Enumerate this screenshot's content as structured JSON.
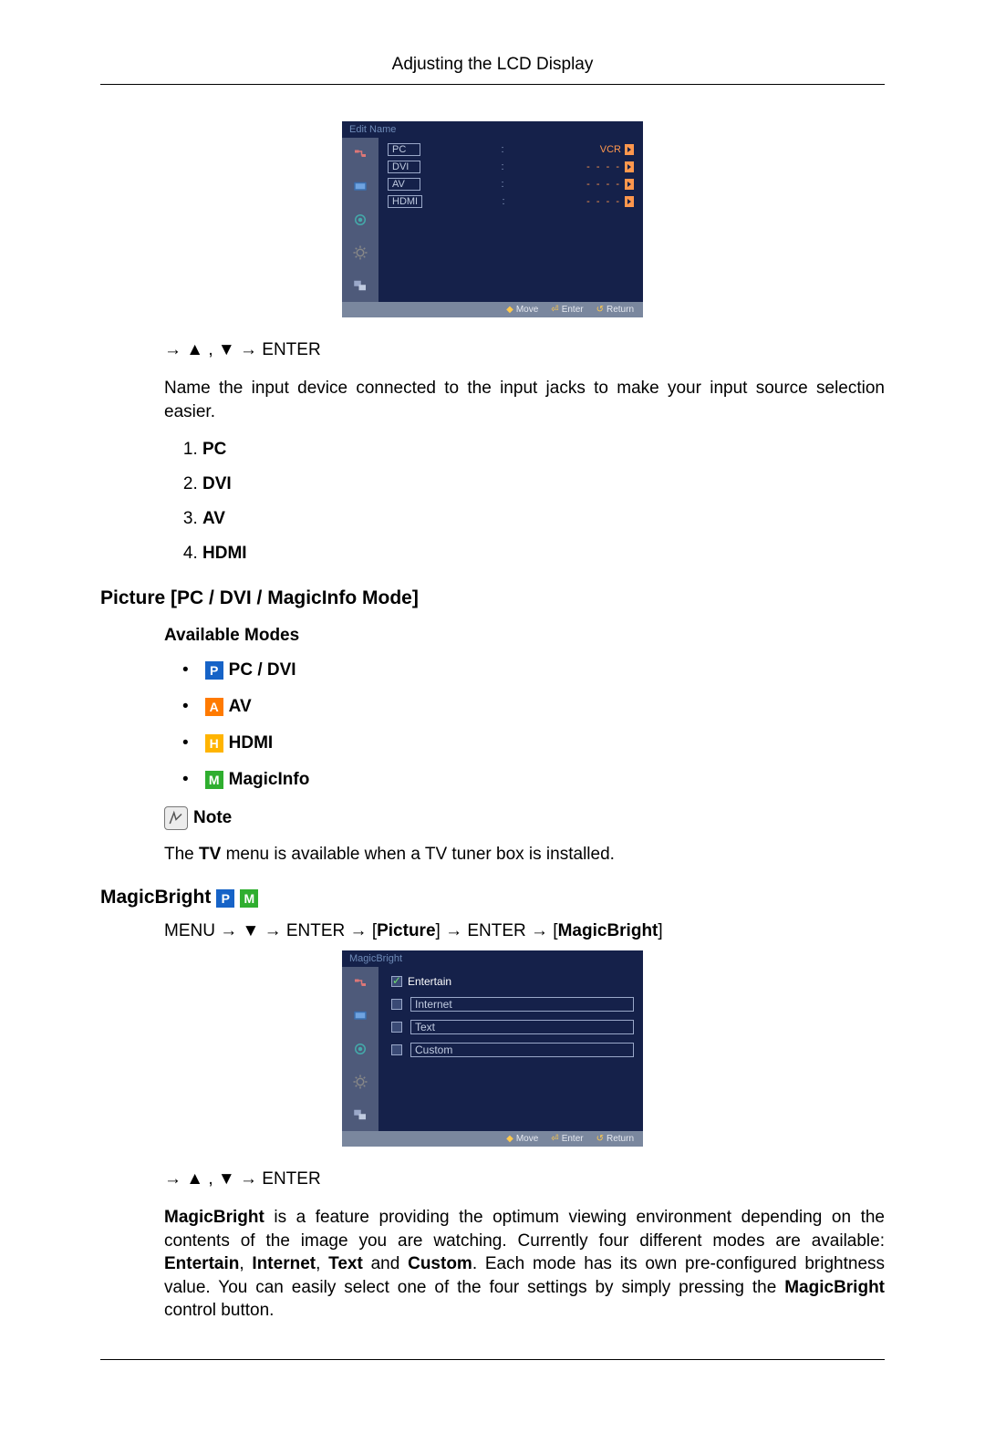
{
  "header": {
    "title": "Adjusting the LCD Display"
  },
  "osd1": {
    "title": "Edit Name",
    "rows": [
      {
        "label": "PC",
        "value": "VCR",
        "highlight": true,
        "dash": false
      },
      {
        "label": "DVI",
        "value": "- - - -",
        "highlight": false,
        "dash": true
      },
      {
        "label": "AV",
        "value": "- - - -",
        "highlight": false,
        "dash": true
      },
      {
        "label": "HDMI",
        "value": "- - - -",
        "highlight": false,
        "dash": true
      }
    ],
    "footer": {
      "move": "Move",
      "enter": "Enter",
      "return": "Return"
    },
    "iconbar_bg": "#4e5a7a",
    "panel_bg": "#15214a"
  },
  "nav1": "→ ▲ , ▼ → ENTER",
  "desc1": "Name the input device connected to the input jacks to make your input source selection easier.",
  "inputs_list": [
    "PC",
    "DVI",
    "AV",
    "HDMI"
  ],
  "section_picture": "Picture [PC / DVI / MagicInfo Mode]",
  "available_modes_title": "Available Modes",
  "modes": [
    {
      "badge": "P",
      "color": "#1663c7",
      "label": "PC / DVI"
    },
    {
      "badge": "A",
      "color": "#ff7a00",
      "label": "AV"
    },
    {
      "badge": "H",
      "color": "#ffb400",
      "label": "HDMI"
    },
    {
      "badge": "M",
      "color": "#2fae2f",
      "label": "MagicInfo"
    }
  ],
  "note_label": "Note",
  "note_text_prefix": "The ",
  "note_text_bold": "TV",
  "note_text_suffix": " menu is available when a TV tuner box is installed.",
  "section_magicbright": "MagicBright",
  "magicbright_badges": [
    {
      "badge": "P",
      "color": "#1663c7"
    },
    {
      "badge": "M",
      "color": "#2fae2f"
    }
  ],
  "menu_path": {
    "seq": [
      {
        "t": "MENU → ▼ → ENTER → [",
        "b": false
      },
      {
        "t": "Picture",
        "b": true
      },
      {
        "t": "] → ENTER → [",
        "b": false
      },
      {
        "t": "MagicBright",
        "b": true
      },
      {
        "t": "]",
        "b": false
      }
    ]
  },
  "osd2": {
    "title": "MagicBright",
    "options": [
      {
        "label": "Entertain",
        "selected": true
      },
      {
        "label": "Internet",
        "selected": false
      },
      {
        "label": "Text",
        "selected": false
      },
      {
        "label": "Custom",
        "selected": false
      }
    ],
    "footer": {
      "move": "Move",
      "enter": "Enter",
      "return": "Return"
    }
  },
  "nav2": "→ ▲ , ▼ → ENTER",
  "magicbright_para": {
    "parts": [
      {
        "t": "MagicBright",
        "b": true
      },
      {
        "t": " is a feature providing the optimum viewing environment depending on the contents of the image you are watching. Currently four different modes are available: ",
        "b": false
      },
      {
        "t": "Entertain",
        "b": true
      },
      {
        "t": ", ",
        "b": false
      },
      {
        "t": "Internet",
        "b": true
      },
      {
        "t": ", ",
        "b": false
      },
      {
        "t": "Text",
        "b": true
      },
      {
        "t": " and ",
        "b": false
      },
      {
        "t": "Custom",
        "b": true
      },
      {
        "t": ". Each mode has its own pre-configured brightness value. You can easily select one of the four settings by simply pressing the ",
        "b": false
      },
      {
        "t": "MagicBright",
        "b": true
      },
      {
        "t": " control button.",
        "b": false
      }
    ]
  }
}
